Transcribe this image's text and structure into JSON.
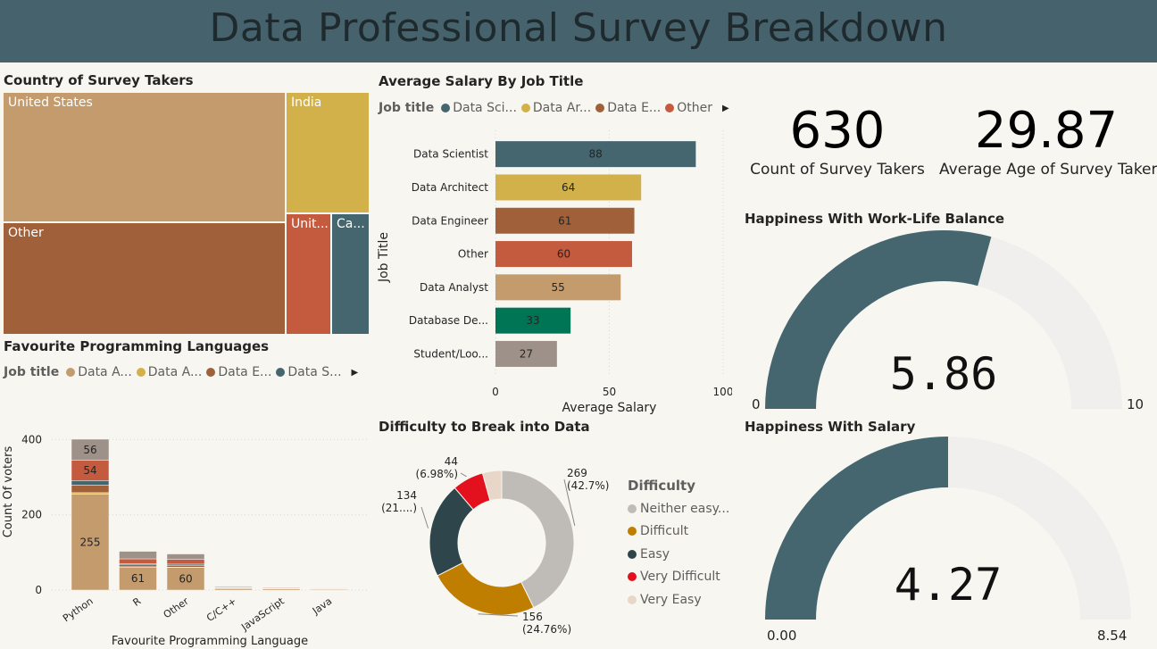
{
  "header": {
    "title": "Data Professional Survey Breakdown"
  },
  "treemap": {
    "title": "Country of Survey Takers",
    "tiles": [
      {
        "label": "United States",
        "color": "#c39b6d"
      },
      {
        "label": "India",
        "color": "#d3b14a"
      },
      {
        "label": "Other",
        "color": "#a0603a"
      },
      {
        "label": "Unit...",
        "color": "#c45a3e"
      },
      {
        "label": "Ca...",
        "color": "#46666f"
      }
    ]
  },
  "salary_chart": {
    "title": "Average Salary By Job Title",
    "legend_title": "Job title",
    "legend": [
      {
        "label": "Data Sci...",
        "color": "#46666f"
      },
      {
        "label": "Data Ar...",
        "color": "#d3b14a"
      },
      {
        "label": "Data E...",
        "color": "#a0603a"
      },
      {
        "label": "Other",
        "color": "#c45a3e"
      }
    ]
  },
  "lang_chart": {
    "title": "Favourite Programming Languages",
    "legend_title": "Job title",
    "legend": [
      {
        "label": "Data A...",
        "color": "#c39b6d"
      },
      {
        "label": "Data A...",
        "color": "#d3b14a"
      },
      {
        "label": "Data E...",
        "color": "#a0603a"
      },
      {
        "label": "Data S...",
        "color": "#46666f"
      }
    ]
  },
  "difficulty_chart": {
    "title": "Difficulty to Break into Data",
    "legend_title": "Difficulty",
    "legend": [
      {
        "label": "Neither easy...",
        "color": "#bfbbb6"
      },
      {
        "label": "Difficult",
        "color": "#c07e00"
      },
      {
        "label": "Easy",
        "color": "#2e454c"
      },
      {
        "label": "Very Difficult",
        "color": "#e3101e"
      },
      {
        "label": "Very Easy",
        "color": "#e8d7c8"
      }
    ]
  },
  "kpis": {
    "count_value": "630",
    "count_label": "Count of Survey Takers",
    "age_value": "29.87",
    "age_label": "Average Age of Survey Taker"
  },
  "gauge_worklife": {
    "title": "Happiness With Work-Life Balance",
    "value": 5.86,
    "value_label": "5.86",
    "min_label": "0",
    "max_label": "10",
    "min": 0,
    "max": 10
  },
  "gauge_salary": {
    "title": "Happiness With Salary",
    "value": 4.27,
    "value_label": "4.27",
    "min_label": "0.00",
    "max_label": "8.54",
    "min": 0,
    "max": 8.54
  },
  "colors": {
    "header": "#46636d",
    "gauge_fill": "#46666f",
    "gauge_track": "#f0efee"
  },
  "chart_data": [
    {
      "type": "treemap",
      "title": "Country of Survey Takers",
      "categories": [
        "United States",
        "India",
        "Other",
        "Unit...",
        "Ca..."
      ]
    },
    {
      "type": "bar",
      "orientation": "horizontal",
      "title": "Average Salary By Job Title",
      "categories": [
        "Data Scientist",
        "Data Architect",
        "Data Engineer",
        "Other",
        "Data Analyst",
        "Database De...",
        "Student/Loo..."
      ],
      "values": [
        88,
        64,
        61,
        60,
        55,
        33,
        27
      ],
      "value_labels": [
        "88",
        "64",
        "61",
        "60",
        "55",
        "33",
        "27"
      ],
      "colors": [
        "#46666f",
        "#d3b14a",
        "#a0603a",
        "#c45a3e",
        "#c39b6d",
        "#007556",
        "#9e918a"
      ],
      "xlabel": "Average Salary",
      "ylabel": "Job Title",
      "xlim": [
        0,
        100
      ],
      "xticks": [
        "0",
        "50",
        "100"
      ]
    },
    {
      "type": "bar",
      "stacked": true,
      "title": "Favourite Programming Languages",
      "categories": [
        "Python",
        "R",
        "Other",
        "C/C++",
        "JavaScript",
        "Java"
      ],
      "xlabel": "Favourite Programming Language",
      "ylabel": "Count Of voters",
      "ylim": [
        0,
        420
      ],
      "yticks": [
        "0",
        "200",
        "400"
      ],
      "series": [
        {
          "color": "#c39b6d",
          "values": [
            255,
            61,
            60,
            4,
            3,
            2
          ],
          "labels": [
            "255",
            "61",
            "60",
            "",
            "",
            ""
          ]
        },
        {
          "color": "#d3b14a",
          "values": [
            4,
            1,
            1,
            1,
            0,
            0
          ],
          "labels": [
            "",
            "",
            "",
            "",
            "",
            ""
          ]
        },
        {
          "color": "#a0603a",
          "values": [
            20,
            5,
            5,
            1,
            1,
            1
          ],
          "labels": [
            "",
            "",
            "",
            "",
            "",
            ""
          ]
        },
        {
          "color": "#46666f",
          "values": [
            12,
            3,
            3,
            1,
            1,
            0
          ],
          "labels": [
            "",
            "",
            "",
            "",
            "",
            ""
          ]
        },
        {
          "color": "#c45a3e",
          "values": [
            54,
            13,
            13,
            2,
            2,
            1
          ],
          "labels": [
            "54",
            "",
            "",
            "",
            "",
            ""
          ]
        },
        {
          "color": "#9e918a",
          "values": [
            56,
            20,
            14,
            1,
            1,
            1
          ],
          "labels": [
            "56",
            "",
            "",
            "",
            "",
            ""
          ]
        }
      ]
    },
    {
      "type": "pie",
      "donut": true,
      "title": "Difficulty to Break into Data",
      "categories": [
        "Neither easy...",
        "Difficult",
        "Easy",
        "Very Difficult",
        "Very Easy"
      ],
      "values": [
        269,
        156,
        134,
        44,
        27
      ],
      "colors": [
        "#bfbbb6",
        "#c07e00",
        "#2e454c",
        "#e3101e",
        "#e8d7c8"
      ],
      "labels": [
        {
          "count": "269",
          "pct": "(42.7%)"
        },
        {
          "count": "156",
          "pct": "(24.76%)"
        },
        {
          "count": "134",
          "pct": "(21....)"
        },
        {
          "count": "44",
          "pct": "(6.98%)"
        }
      ]
    }
  ]
}
